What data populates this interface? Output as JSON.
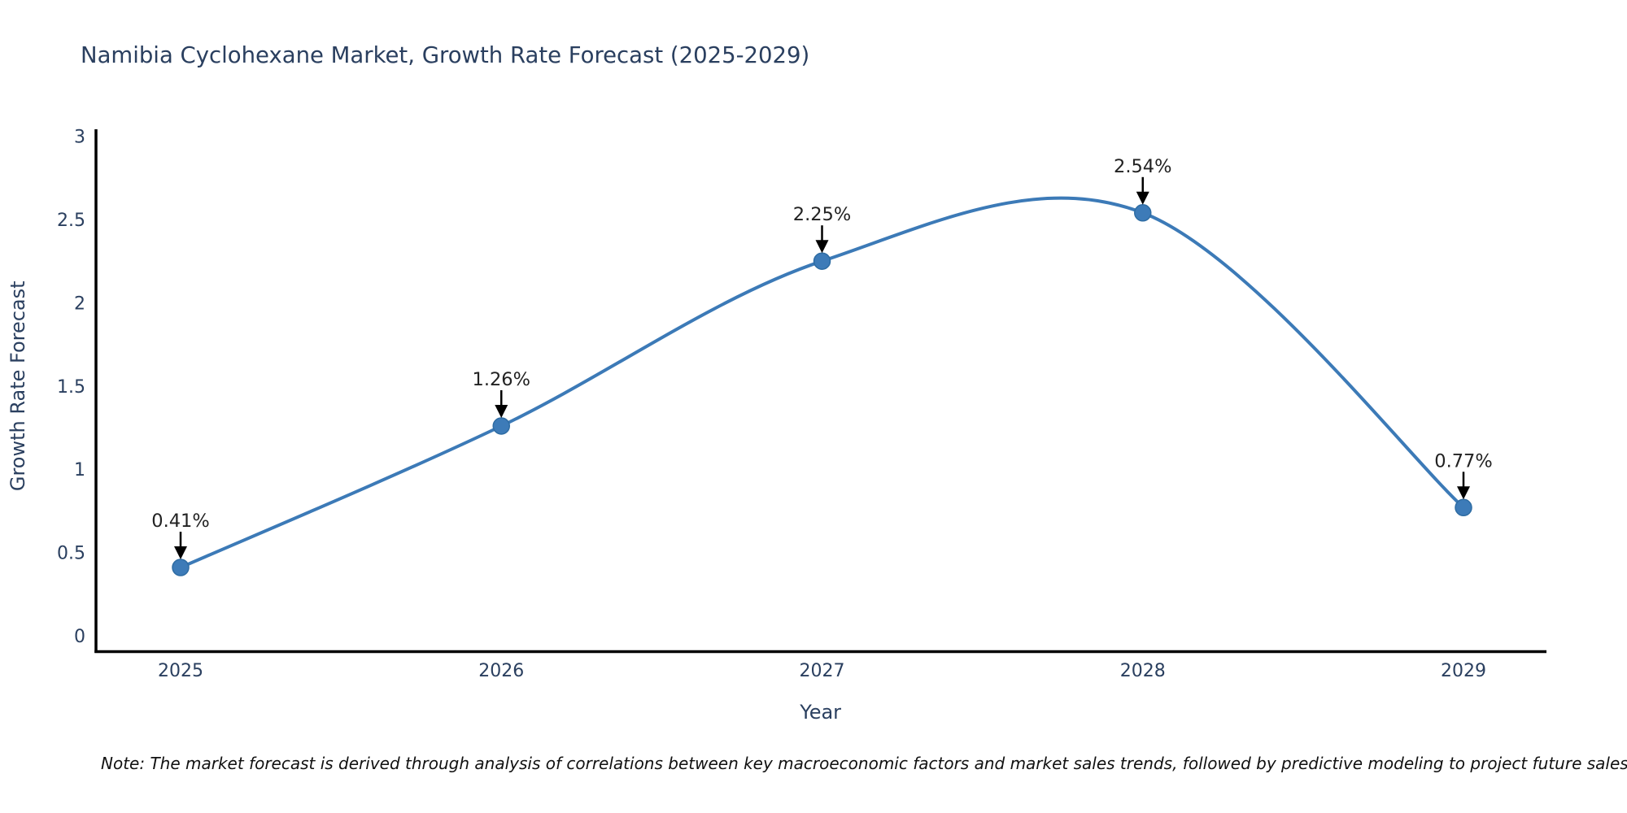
{
  "title": "Namibia Cyclohexane Market, Growth Rate Forecast (2025-2029)",
  "note": "Note: The market forecast is derived through analysis of correlations between key macroeconomic factors and market sales trends, followed by predictive modeling to project future sales",
  "chart_data": {
    "type": "line",
    "curve": "spline",
    "title": "Namibia Cyclohexane Market, Growth Rate Forecast (2025-2029)",
    "xlabel": "Year",
    "ylabel": "Growth Rate Forecast",
    "x": [
      "2025",
      "2026",
      "2027",
      "2028",
      "2029"
    ],
    "series": [
      {
        "name": "Growth Rate Forecast",
        "values": [
          0.41,
          1.26,
          2.25,
          2.54,
          0.77
        ],
        "point_labels": [
          "0.41%",
          "1.26%",
          "2.25%",
          "2.54%",
          "0.77%"
        ]
      }
    ],
    "ylim": [
      0,
      3
    ],
    "yticks": [
      0,
      0.5,
      1,
      1.5,
      2,
      2.5,
      3
    ],
    "ytick_labels": [
      "0",
      "0.5",
      "1",
      "1.5",
      "2",
      "2.5",
      "3"
    ],
    "grid": false,
    "legend_position": "none",
    "annotations_have_arrows": true,
    "colors": {
      "line": "#3c7ab7",
      "marker_fill": "#3d7bb8",
      "marker_edge": "#2e6ca3",
      "axis_line": "#000000",
      "tick_label": "#2a3f5f",
      "axis_title": "#2a3f5f",
      "chart_title": "#2a3f5f",
      "annotation_text": "#222222",
      "annotation_arrow": "#000000",
      "background": "#ffffff"
    }
  }
}
